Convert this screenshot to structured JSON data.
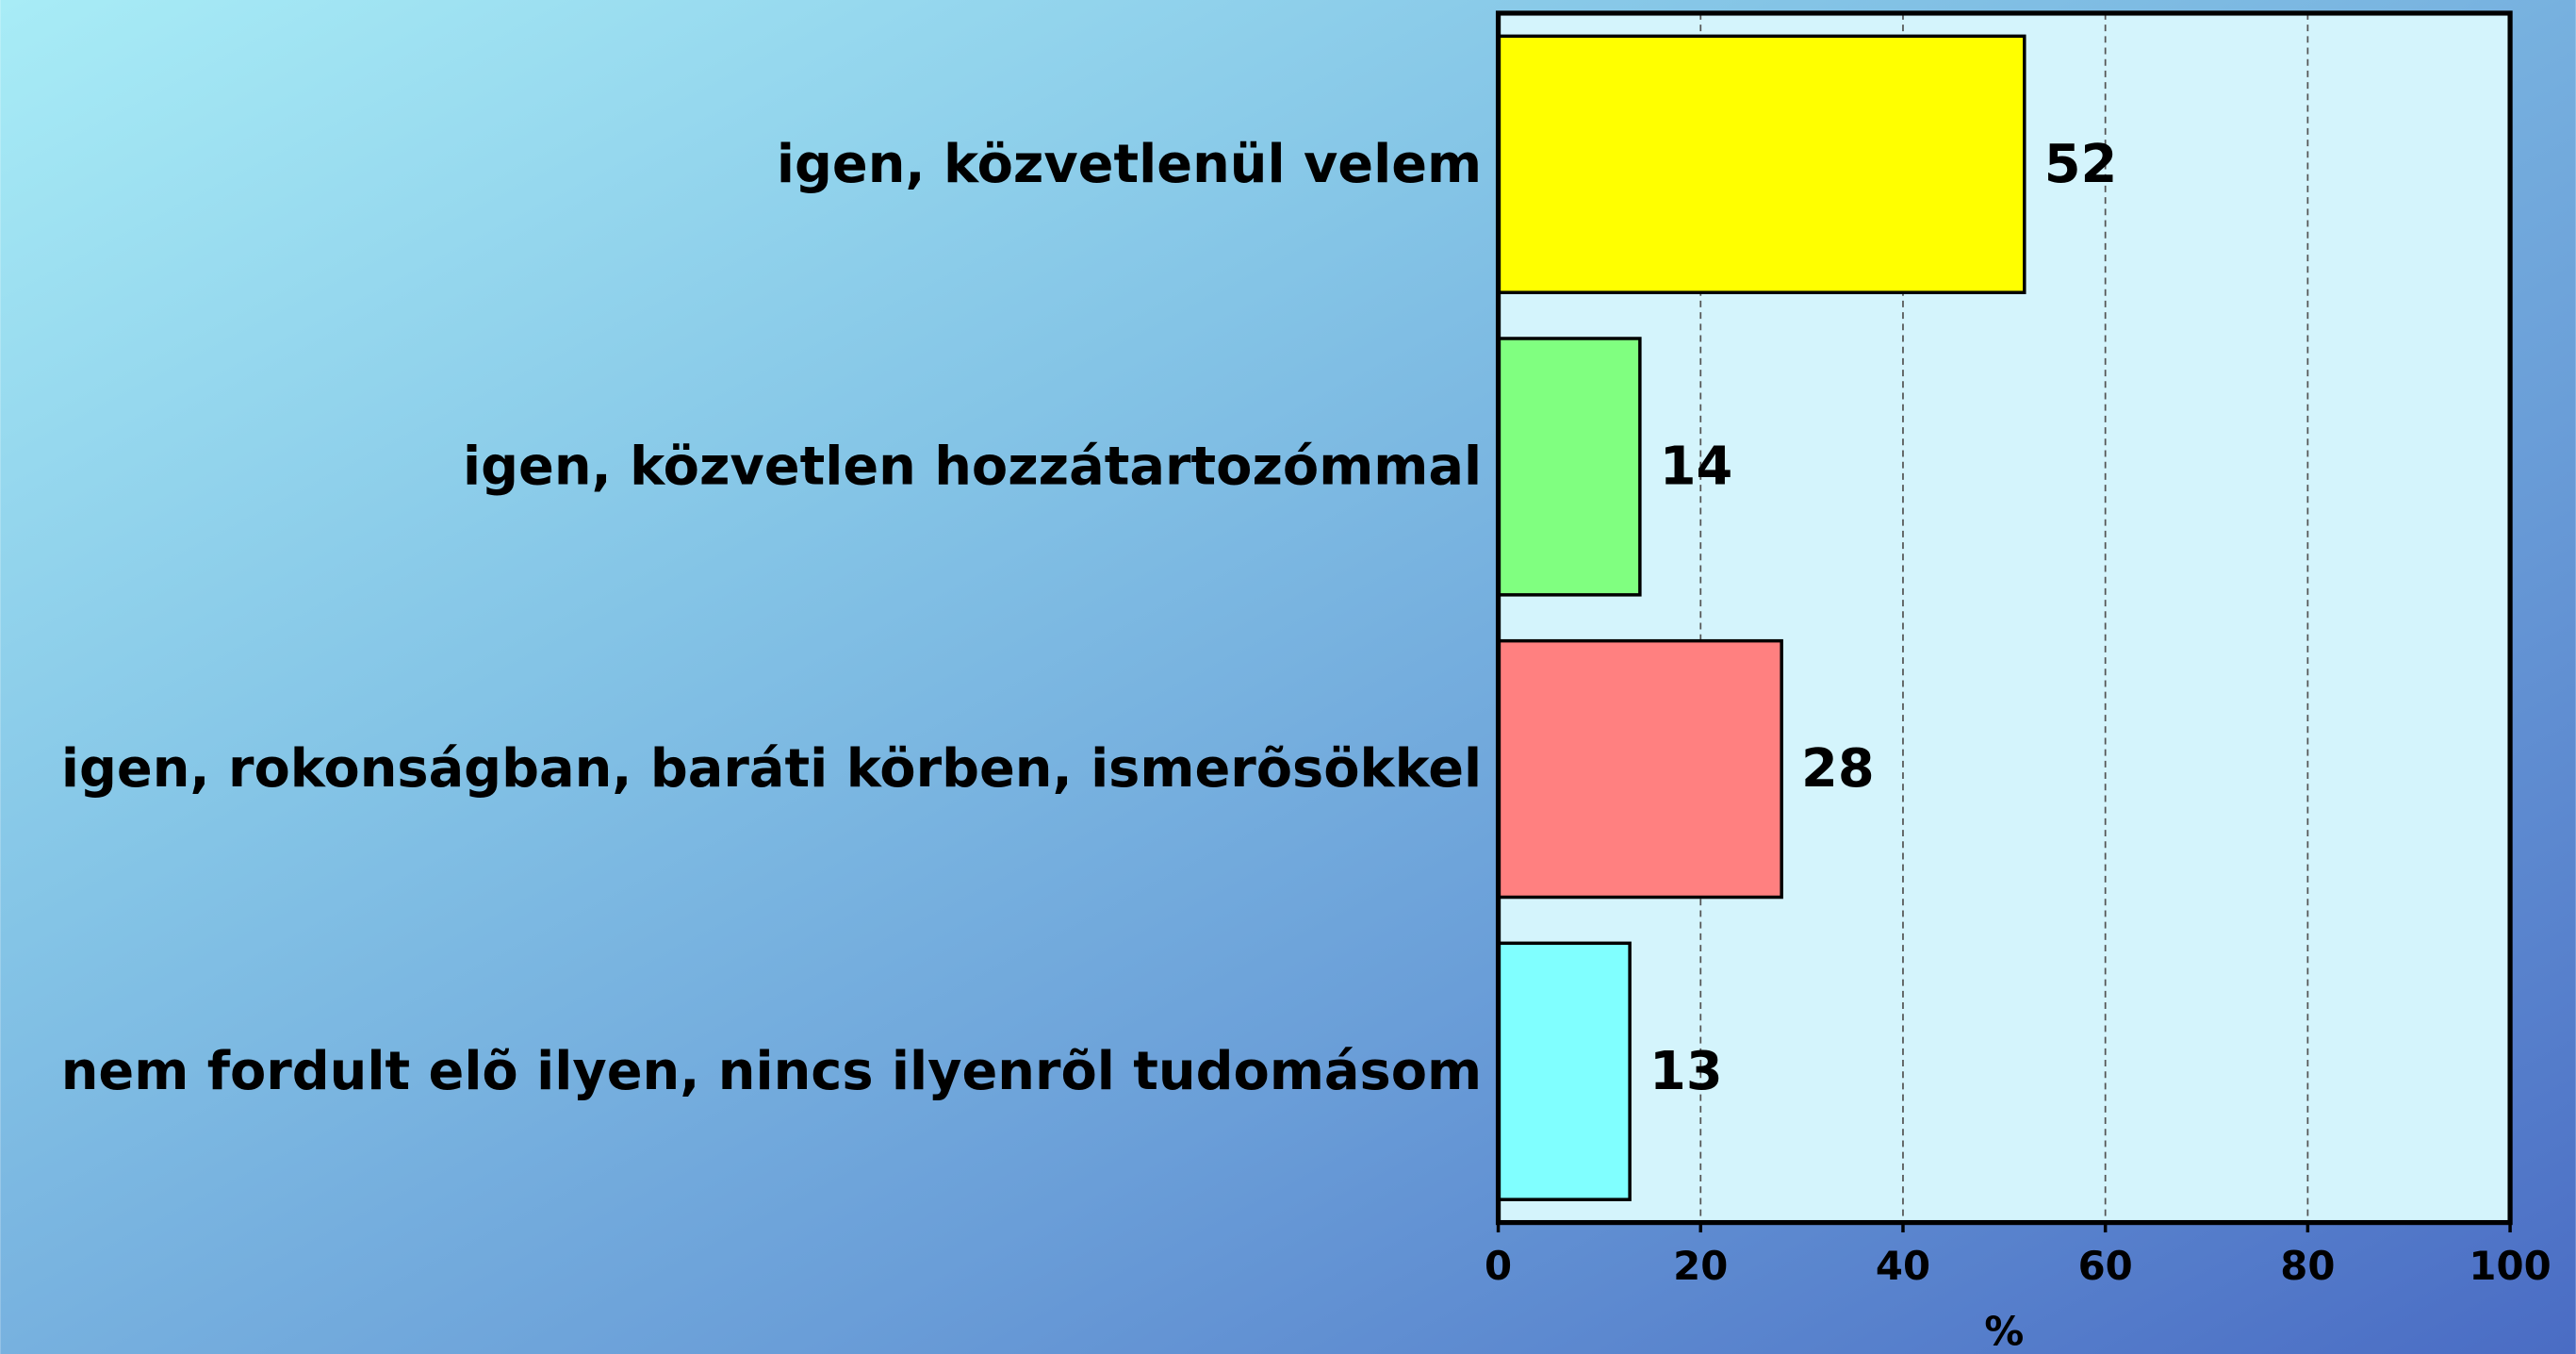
{
  "chart_data": {
    "type": "bar",
    "orientation": "horizontal",
    "categories": [
      "igen, közvetlenül velem",
      "igen, közvetlen hozzátartozómmal",
      "igen, rokonságban, baráti körben, ismerõsökkel",
      "nem fordult elõ ilyen, nincs ilyenrõl tudomásom"
    ],
    "values": [
      52,
      14,
      28,
      13
    ],
    "colors": [
      "#ffff00",
      "#80ff80",
      "#ff8080",
      "#80ffff"
    ],
    "xlabel": "%",
    "xlim": [
      0,
      100
    ],
    "xticks": [
      0,
      20,
      40,
      60,
      80,
      100
    ],
    "grid": true
  }
}
